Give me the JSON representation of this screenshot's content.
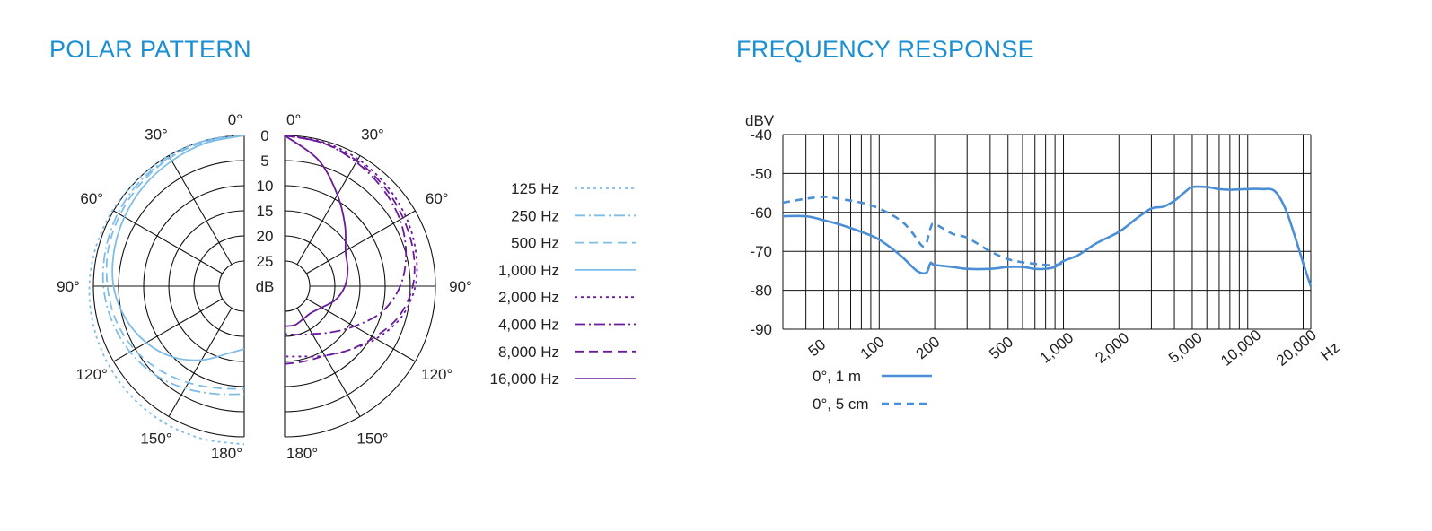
{
  "polar_section": {
    "title": "POLAR PATTERN"
  },
  "frequency_section": {
    "title": "FREQUENCY RESPONSE"
  },
  "colors": {
    "title": "#1a8fd2",
    "light_blue": "#7fbde6",
    "purple": "#6a1b9a",
    "freq_line": "#4a8fd6",
    "grid": "#111111"
  },
  "chart_data": [
    {
      "type": "polar",
      "title": "POLAR PATTERN",
      "unit_label": "dB",
      "angle_labels": {
        "left": [
          "0°",
          "30°",
          "60°",
          "90°",
          "120°",
          "150°",
          "180°"
        ],
        "right": [
          "0°",
          "30°",
          "60°",
          "90°",
          "120°",
          "150°",
          "180°"
        ]
      },
      "radial_ticks": [
        "0",
        "5",
        "10",
        "15",
        "20",
        "25"
      ],
      "radial_range_db": [
        -25,
        0
      ],
      "angles_deg": [
        0,
        15,
        30,
        45,
        60,
        75,
        90,
        105,
        120,
        135,
        150,
        165,
        180
      ],
      "series": [
        {
          "name": "125 Hz",
          "side": "left",
          "color": "light_blue",
          "dash": "3,4",
          "values_db": [
            0,
            0,
            0,
            0,
            0.2,
            0.5,
            0.8,
            1.0,
            1.2,
            1.4,
            1.5,
            1.5,
            1.5
          ]
        },
        {
          "name": "250 Hz",
          "side": "left",
          "color": "light_blue",
          "dash": "12,4,2,4",
          "values_db": [
            0,
            0,
            -0.3,
            -0.6,
            -1.0,
            -1.5,
            -2.0,
            -2.8,
            -3.8,
            -5.0,
            -6.5,
            -7.8,
            -8.5
          ]
        },
        {
          "name": "500 Hz",
          "side": "left",
          "color": "light_blue",
          "dash": "10,6",
          "values_db": [
            0,
            -0.2,
            -0.5,
            -1.0,
            -1.5,
            -2.0,
            -2.8,
            -3.6,
            -4.8,
            -6.3,
            -7.8,
            -9.0,
            -9.5
          ]
        },
        {
          "name": "1,000 Hz",
          "side": "left",
          "color": "light_blue",
          "dash": "",
          "values_db": [
            0,
            -0.5,
            -1.2,
            -1.8,
            -2.5,
            -3.2,
            -4.0,
            -5.5,
            -7.5,
            -10.0,
            -13.0,
            -16.0,
            -17.5
          ]
        },
        {
          "name": "2,000 Hz",
          "side": "right",
          "color": "purple",
          "dash": "3,4",
          "values_db": [
            0,
            -0.3,
            -0.8,
            -1.5,
            -2.2,
            -3.0,
            -4.0,
            -6.0,
            -9.0,
            -12.0,
            -14.0,
            -15.5,
            -16.0
          ]
        },
        {
          "name": "4,000 Hz",
          "side": "right",
          "color": "purple",
          "dash": "12,4,2,4",
          "values_db": [
            0,
            -0.5,
            -1.5,
            -2.5,
            -3.5,
            -5.0,
            -7.0,
            -10.0,
            -14.0,
            -17.0,
            -19.0,
            -20.0,
            -20.5
          ]
        },
        {
          "name": "8,000 Hz",
          "side": "right",
          "color": "purple",
          "dash": "10,6",
          "values_db": [
            0,
            -0.5,
            -1.2,
            -2.0,
            -2.8,
            -3.5,
            -4.5,
            -6.5,
            -9.5,
            -12.0,
            -14.0,
            -14.5,
            -14.5
          ]
        },
        {
          "name": "16,000 Hz",
          "side": "right",
          "color": "purple",
          "dash": "",
          "values_db": [
            0,
            -4.0,
            -9.0,
            -13.0,
            -16.0,
            -17.0,
            -18.0,
            -19.5,
            -21.5,
            -22.5,
            -22.5,
            -22.0,
            -22.0
          ]
        }
      ]
    },
    {
      "type": "line",
      "title": "FREQUENCY RESPONSE",
      "ylabel": "dBV",
      "xlabel": "Hz",
      "x_scale": "log",
      "xlim": [
        30,
        22000
      ],
      "ylim": [
        -90,
        -40
      ],
      "y_ticks": [
        "-40",
        "-50",
        "-60",
        "-70",
        "-80",
        "-90"
      ],
      "x_ticks": [
        {
          "value": 50,
          "label": "50"
        },
        {
          "value": 100,
          "label": "100"
        },
        {
          "value": 200,
          "label": "200"
        },
        {
          "value": 500,
          "label": "500"
        },
        {
          "value": 1000,
          "label": "1,000"
        },
        {
          "value": 2000,
          "label": "2,000"
        },
        {
          "value": 5000,
          "label": "5,000"
        },
        {
          "value": 10000,
          "label": "10,000"
        },
        {
          "value": 20000,
          "label": "20,000"
        }
      ],
      "grid": true,
      "series": [
        {
          "name": "0°, 1 m",
          "color": "freq_line",
          "dash": "",
          "x": [
            30,
            40,
            50,
            60,
            80,
            100,
            130,
            160,
            180,
            190,
            200,
            250,
            300,
            400,
            500,
            600,
            700,
            800,
            900,
            1000,
            1200,
            1500,
            2000,
            2500,
            3000,
            3500,
            4000,
            4500,
            5000,
            6000,
            7000,
            8000,
            10000,
            12000,
            14000,
            16000,
            18000,
            20000,
            22000
          ],
          "y": [
            -61,
            -61,
            -62,
            -63,
            -65,
            -67,
            -71,
            -75,
            -75.5,
            -73,
            -73.5,
            -74,
            -74.5,
            -74.5,
            -74,
            -74,
            -74.5,
            -74.5,
            -74,
            -72.5,
            -71,
            -68,
            -65,
            -61.5,
            -59,
            -58.5,
            -57,
            -55,
            -53.5,
            -53.5,
            -54,
            -54.2,
            -54,
            -54,
            -54.5,
            -59,
            -66,
            -73,
            -79
          ]
        },
        {
          "name": "0°, 5 cm",
          "color": "freq_line",
          "dash": "8,6",
          "x": [
            30,
            40,
            50,
            60,
            80,
            100,
            130,
            150,
            170,
            180,
            190,
            200,
            250,
            300,
            400,
            500,
            600,
            700,
            800,
            900,
            1000
          ],
          "y": [
            -57.5,
            -56.5,
            -56,
            -56.5,
            -57.5,
            -59,
            -62,
            -65,
            -68.5,
            -68,
            -64,
            -63,
            -65.5,
            -66.5,
            -70,
            -72,
            -72.8,
            -73.2,
            -73.5,
            -73.5,
            -73
          ]
        }
      ]
    }
  ]
}
